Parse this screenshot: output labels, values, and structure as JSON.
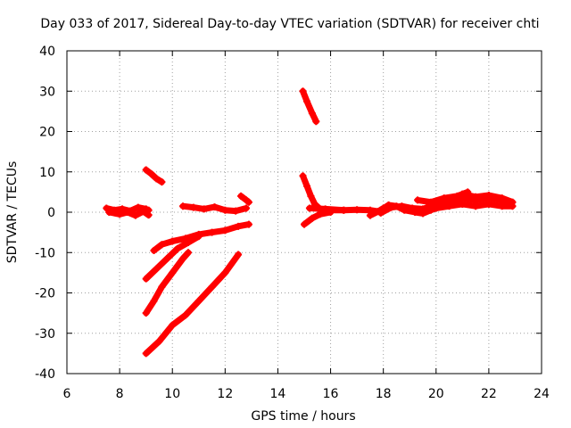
{
  "chart_data": {
    "type": "scatter",
    "title": "Day 033 of 2017, Sidereal Day-to-day VTEC variation (SDTVAR) for receiver chti",
    "xlabel": "GPS time / hours",
    "ylabel": "SDTVAR / TECUs",
    "xlim": [
      6,
      24
    ],
    "ylim": [
      -40,
      40
    ],
    "xticks": [
      6,
      8,
      10,
      12,
      14,
      16,
      18,
      20,
      22,
      24
    ],
    "yticks": [
      -40,
      -30,
      -20,
      -10,
      0,
      10,
      20,
      30,
      40
    ],
    "grid": true,
    "marker": "plus",
    "color": "#ff0000",
    "series": [
      {
        "name": "s1",
        "points": [
          [
            7.5,
            1.0
          ],
          [
            7.8,
            0.5
          ],
          [
            8.1,
            0.8
          ],
          [
            8.4,
            0.3
          ],
          [
            8.7,
            1.2
          ],
          [
            9.0,
            0.8
          ],
          [
            9.1,
            0.5
          ]
        ]
      },
      {
        "name": "s2",
        "points": [
          [
            7.6,
            0.0
          ],
          [
            8.0,
            -0.5
          ],
          [
            8.3,
            0.0
          ],
          [
            8.6,
            -0.8
          ],
          [
            8.9,
            0.2
          ],
          [
            9.1,
            -0.7
          ]
        ]
      },
      {
        "name": "s3",
        "points": [
          [
            9.0,
            10.5
          ],
          [
            9.2,
            9.5
          ],
          [
            9.4,
            8.3
          ],
          [
            9.6,
            7.5
          ]
        ]
      },
      {
        "name": "s4",
        "points": [
          [
            10.4,
            1.5
          ],
          [
            10.8,
            1.2
          ],
          [
            11.2,
            0.8
          ],
          [
            11.6,
            1.3
          ],
          [
            12.0,
            0.5
          ],
          [
            12.4,
            0.3
          ],
          [
            12.8,
            1.0
          ]
        ]
      },
      {
        "name": "s5",
        "points": [
          [
            12.6,
            4.0
          ],
          [
            12.8,
            3.0
          ],
          [
            12.9,
            2.5
          ]
        ]
      },
      {
        "name": "s6",
        "points": [
          [
            9.3,
            -9.5
          ],
          [
            9.6,
            -8.0
          ],
          [
            10.0,
            -7.2
          ],
          [
            10.5,
            -6.5
          ],
          [
            11.0,
            -5.5
          ],
          [
            11.5,
            -5.0
          ],
          [
            12.0,
            -4.5
          ],
          [
            12.5,
            -3.5
          ],
          [
            12.9,
            -3.0
          ]
        ]
      },
      {
        "name": "s7",
        "points": [
          [
            9.0,
            -16.5
          ],
          [
            9.4,
            -14.0
          ],
          [
            9.8,
            -11.5
          ],
          [
            10.2,
            -9.0
          ],
          [
            10.6,
            -7.5
          ],
          [
            11.0,
            -6.0
          ]
        ]
      },
      {
        "name": "s8",
        "points": [
          [
            9.0,
            -25.0
          ],
          [
            9.3,
            -22.0
          ],
          [
            9.6,
            -18.5
          ],
          [
            10.0,
            -15.0
          ],
          [
            10.4,
            -11.5
          ],
          [
            10.6,
            -10.0
          ]
        ]
      },
      {
        "name": "s9",
        "points": [
          [
            9.0,
            -35.0
          ],
          [
            9.5,
            -32.0
          ],
          [
            10.0,
            -28.0
          ],
          [
            10.5,
            -25.5
          ],
          [
            11.0,
            -22.0
          ],
          [
            11.5,
            -18.5
          ],
          [
            12.0,
            -15.0
          ],
          [
            12.5,
            -10.5
          ]
        ]
      },
      {
        "name": "s10",
        "points": [
          [
            14.95,
            30.0
          ],
          [
            15.1,
            27.5
          ],
          [
            15.3,
            24.5
          ],
          [
            15.45,
            22.5
          ]
        ]
      },
      {
        "name": "s11",
        "points": [
          [
            14.95,
            9.0
          ],
          [
            15.1,
            6.5
          ],
          [
            15.25,
            4.0
          ],
          [
            15.4,
            2.0
          ],
          [
            15.6,
            0.8
          ],
          [
            16.0,
            0.5
          ],
          [
            16.5,
            0.5
          ]
        ]
      },
      {
        "name": "s12",
        "points": [
          [
            15.0,
            -3.0
          ],
          [
            15.3,
            -1.5
          ],
          [
            15.6,
            -0.5
          ],
          [
            16.0,
            0.0
          ]
        ]
      },
      {
        "name": "s13",
        "points": [
          [
            15.2,
            1.0
          ],
          [
            15.8,
            0.8
          ],
          [
            16.5,
            0.5
          ],
          [
            17.0,
            0.6
          ],
          [
            17.5,
            0.5
          ],
          [
            17.8,
            0.2
          ],
          [
            18.0,
            1.0
          ]
        ]
      },
      {
        "name": "s14",
        "points": [
          [
            17.5,
            -0.8
          ],
          [
            17.9,
            0.5
          ],
          [
            18.2,
            1.8
          ],
          [
            18.5,
            1.5
          ],
          [
            18.8,
            0.5
          ],
          [
            19.2,
            0.0
          ],
          [
            19.5,
            -0.3
          ],
          [
            19.8,
            0.5
          ],
          [
            20.2,
            1.5
          ]
        ]
      },
      {
        "name": "s15",
        "points": [
          [
            17.9,
            -0.2
          ],
          [
            18.3,
            1.2
          ],
          [
            18.7,
            1.5
          ],
          [
            19.1,
            1.0
          ],
          [
            19.5,
            0.8
          ],
          [
            20.0,
            2.0
          ],
          [
            20.5,
            2.5
          ],
          [
            21.0,
            3.5
          ],
          [
            21.5,
            3.0
          ],
          [
            22.0,
            3.5
          ],
          [
            22.5,
            3.0
          ],
          [
            22.8,
            2.0
          ]
        ]
      },
      {
        "name": "s16",
        "points": [
          [
            19.3,
            3.0
          ],
          [
            19.8,
            2.5
          ],
          [
            20.3,
            3.5
          ],
          [
            20.8,
            4.0
          ],
          [
            21.2,
            5.0
          ]
        ]
      },
      {
        "name": "s17",
        "points": [
          [
            20.0,
            1.0
          ],
          [
            20.5,
            1.5
          ],
          [
            21.0,
            2.0
          ],
          [
            21.5,
            1.5
          ],
          [
            22.0,
            2.0
          ],
          [
            22.5,
            1.5
          ],
          [
            22.9,
            1.5
          ]
        ]
      },
      {
        "name": "s18",
        "points": [
          [
            21.0,
            4.5
          ],
          [
            21.5,
            3.8
          ],
          [
            22.0,
            4.2
          ],
          [
            22.5,
            3.5
          ],
          [
            22.9,
            2.5
          ]
        ]
      }
    ]
  }
}
